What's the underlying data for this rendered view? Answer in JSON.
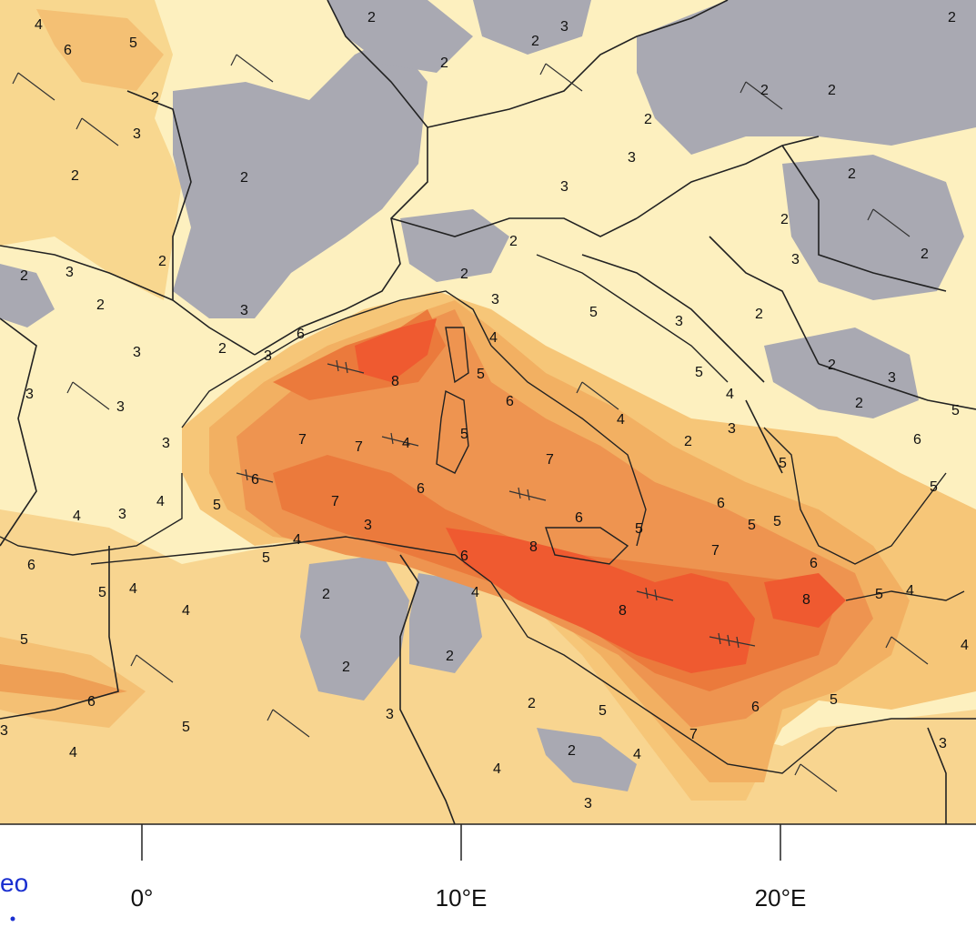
{
  "map": {
    "palette": {
      "ocean_light": "#fdf3c4",
      "level_3": "#fbe5a6",
      "level_4": "#f8d48b",
      "level_5": "#f4bd6b",
      "level_6": "#f0a057",
      "level_7": "#ec7f43",
      "level_8": "#f05a32",
      "low_gray": "#a8a8b0",
      "border": "#222222"
    },
    "contour_labels": [
      "2",
      "3",
      "4",
      "5",
      "6",
      "7",
      "8"
    ],
    "axis": {
      "ticks": [
        {
          "label": "0°"
        },
        {
          "label": "10°E"
        },
        {
          "label": "20°E"
        }
      ]
    },
    "logo": {
      "text": "eo"
    }
  }
}
